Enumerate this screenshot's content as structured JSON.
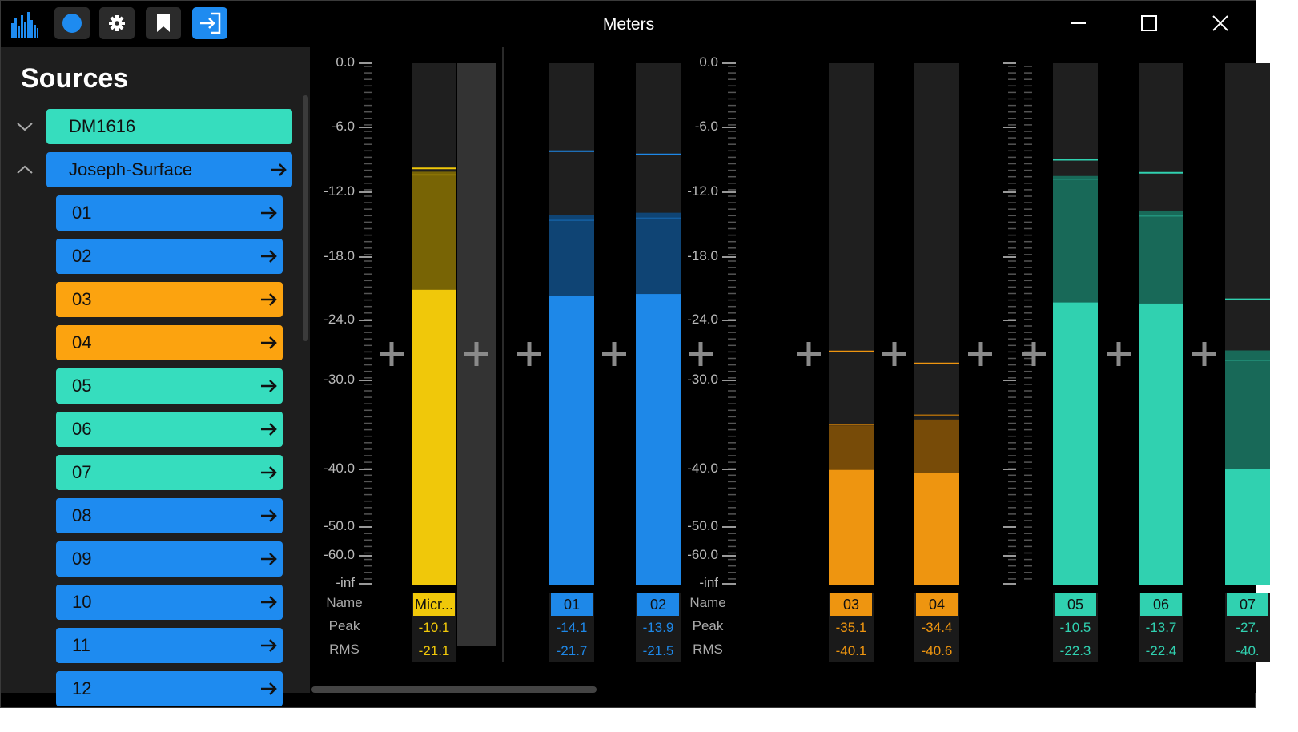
{
  "window": {
    "title": "Meters",
    "toolbar": [
      {
        "name": "app-logo",
        "icon": "bars-icon",
        "active": false
      },
      {
        "name": "record-button",
        "icon": "circle-icon",
        "active": false
      },
      {
        "name": "settings-button",
        "icon": "gear-icon",
        "active": false
      },
      {
        "name": "bookmark-button",
        "icon": "bookmark-icon",
        "active": false
      },
      {
        "name": "enter-button",
        "icon": "sign-in-icon",
        "active": true
      }
    ]
  },
  "sidebar": {
    "title": "Sources",
    "items": [
      {
        "label": "DM1616",
        "color": "#36ddbe",
        "level": 0,
        "expander": "chevron-down",
        "arrow": false
      },
      {
        "label": "Joseph-Surface",
        "color": "#1e8bf0",
        "level": 0,
        "expander": "chevron-up",
        "arrow": true
      },
      {
        "label": "01",
        "color": "#1e8bf0",
        "level": 1,
        "arrow": true
      },
      {
        "label": "02",
        "color": "#1e8bf0",
        "level": 1,
        "arrow": true
      },
      {
        "label": "03",
        "color": "#fca30f",
        "level": 1,
        "arrow": true
      },
      {
        "label": "04",
        "color": "#fca30f",
        "level": 1,
        "arrow": true
      },
      {
        "label": "05",
        "color": "#36ddbe",
        "level": 1,
        "arrow": true
      },
      {
        "label": "06",
        "color": "#36ddbe",
        "level": 1,
        "arrow": true
      },
      {
        "label": "07",
        "color": "#36ddbe",
        "level": 1,
        "arrow": true
      },
      {
        "label": "08",
        "color": "#1e8bf0",
        "level": 1,
        "arrow": true
      },
      {
        "label": "09",
        "color": "#1e8bf0",
        "level": 1,
        "arrow": true
      },
      {
        "label": "10",
        "color": "#1e8bf0",
        "level": 1,
        "arrow": true
      },
      {
        "label": "11",
        "color": "#1e8bf0",
        "level": 1,
        "arrow": true
      },
      {
        "label": "12",
        "color": "#1e8bf0",
        "level": 1,
        "arrow": true
      }
    ]
  },
  "scale": {
    "ticks": [
      "0.0",
      "-6.0",
      "-12.0",
      "-18.0",
      "-24.0",
      "-30.0",
      "-40.0",
      "-50.0",
      "-60.0",
      "-inf"
    ],
    "row_labels": {
      "name": "Name",
      "peak": "Peak",
      "rms": "RMS"
    }
  },
  "channels": [
    {
      "name": "Micr...",
      "peak": "-10.1",
      "rms": "-21.1",
      "color": "#f0c80a",
      "group": "yellow"
    },
    {
      "name": "01",
      "peak": "-14.1",
      "rms": "-21.7",
      "color": "#1e88e8",
      "group": "blue"
    },
    {
      "name": "02",
      "peak": "-13.9",
      "rms": "-21.5",
      "color": "#1e88e8",
      "group": "blue"
    },
    {
      "name": "03",
      "peak": "-35.1",
      "rms": "-40.1",
      "color": "#ee9510",
      "group": "orange"
    },
    {
      "name": "04",
      "peak": "-34.4",
      "rms": "-40.6",
      "color": "#ee9510",
      "group": "orange"
    },
    {
      "name": "05",
      "peak": "-10.5",
      "rms": "-22.3",
      "color": "#30d1b0",
      "group": "teal"
    },
    {
      "name": "06",
      "peak": "-13.7",
      "rms": "-22.4",
      "color": "#30d1b0",
      "group": "teal"
    },
    {
      "name": "07",
      "peak": "-27.",
      "rms": "-40.",
      "color": "#30d1b0",
      "group": "teal"
    }
  ],
  "icons": {
    "add": "plus-icon",
    "arrow": "arrow-right-icon",
    "minimize": "minimize-icon",
    "maximize": "maximize-icon",
    "close": "close-icon"
  }
}
